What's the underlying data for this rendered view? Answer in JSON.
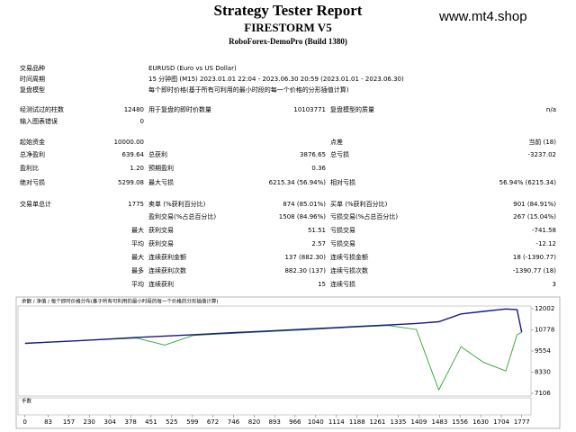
{
  "header": {
    "title": "Strategy Tester Report",
    "expert": "FIRESTORM V5",
    "server": "RoboForex-DemoPro (Build 1380)",
    "watermark": "www.mt4.shop"
  },
  "table": {
    "rows": [
      {
        "label": "交易品种",
        "text": "EURUSD (Euro vs US Dollar)"
      },
      {
        "label": "时间周期",
        "text": "15 分钟图 (M15) 2023.01.01 22:04 - 2023.06.30 20:59 (2023.01.01 - 2023.06.30)"
      },
      {
        "label": "复盘模型",
        "text": "每个即时价格(基于所有可利用的最小时段的每一个价格的分形插值计算)"
      },
      {
        "label": "经测试过的柱数",
        "value": "12480",
        "label2": "用于复盘的即时价数量",
        "value2": "10103771",
        "label3": "复盘模型的质量",
        "value3": "n/a"
      },
      {
        "label": "输入图表错误",
        "value": "0"
      },
      {
        "label": "起始资金",
        "value": "10000.00",
        "label3": "点差",
        "value3": "当前 (18)"
      },
      {
        "label": "总净盈利",
        "value": "639.64",
        "label2": "总获利",
        "value2": "3876.65",
        "label3": "总亏损",
        "value3": "-3237.02"
      },
      {
        "label": "盈利比",
        "value": "1.20",
        "label2": "预期盈利",
        "value2": "0.36"
      },
      {
        "label": "绝对亏损",
        "value": "5299.08",
        "label2": "最大亏损",
        "value2": "6215.34 (56.94%)",
        "label3": "相对亏损",
        "value3": "56.94% (6215.34)"
      },
      {
        "label": "交易单总计",
        "value": "1775",
        "label2": "卖单 (%获利百分比)",
        "value2": "874 (85.01%)",
        "label3": "买单 (%获利百分比)",
        "value3": "901 (84.91%)"
      },
      {
        "label2": "盈利交易(%占总百分比)",
        "value2": "1508 (84.96%)",
        "label3": "亏损交易(%占总百分比)",
        "value3": "267 (15.04%)"
      },
      {
        "prefix": "最大",
        "label2": "获利交易",
        "value2": "51.51",
        "label3": "亏损交易",
        "value3": "-741.58"
      },
      {
        "prefix": "平均",
        "label2": "获利交易",
        "value2": "2.57",
        "label3": "亏损交易",
        "value3": "-12.12"
      },
      {
        "prefix": "最大",
        "label2": "连续获利金额",
        "value2": "137 (882.30)",
        "label3": "连续亏损金额",
        "value3": "18 (-1390.77)"
      },
      {
        "prefix": "最多",
        "label2": "连续获利次数",
        "value2": "882.30 (137)",
        "label3": "连续亏损次数",
        "value3": "-1390.77 (18)"
      },
      {
        "prefix": "平均",
        "label2": "连续获利",
        "value2": "15",
        "label3": "连续亏损",
        "value3": "3"
      }
    ]
  },
  "chart_data": {
    "type": "line",
    "legend": "余额 / 净值 / 每个即时价格分布(基于所有可利用的最小时段的每一个价格的分形插值计算)",
    "lots_label": "手数",
    "x": [
      0,
      100,
      200,
      300,
      400,
      500,
      600,
      700,
      800,
      900,
      1000,
      1100,
      1200,
      1300,
      1400,
      1480,
      1560,
      1640,
      1720,
      1760,
      1777
    ],
    "series": [
      {
        "name": "余额",
        "color": "#1a1a80",
        "values": [
          10000,
          10080,
          10160,
          10250,
          10340,
          10420,
          10500,
          10580,
          10660,
          10740,
          10820,
          10900,
          10980,
          11060,
          11150,
          11250,
          11700,
          11850,
          11990,
          11950,
          10640
        ]
      },
      {
        "name": "净值",
        "color": "#2ca02c",
        "values": [
          10000,
          10070,
          10150,
          10230,
          10300,
          9900,
          10450,
          10540,
          10620,
          10700,
          10780,
          10870,
          10950,
          11030,
          10800,
          7300,
          9800,
          8900,
          8400,
          10500,
          10640
        ]
      }
    ],
    "xlim": [
      -25,
      1810
    ],
    "ylim": [
      6950,
      12160
    ],
    "xticks": [
      0,
      83,
      157,
      230,
      304,
      378,
      451,
      525,
      599,
      672,
      746,
      820,
      893,
      966,
      1040,
      1114,
      1188,
      1261,
      1335,
      1409,
      1483,
      1556,
      1630,
      1704,
      1777
    ],
    "yticks": [
      12002,
      10778,
      9554,
      8330,
      7106
    ]
  }
}
